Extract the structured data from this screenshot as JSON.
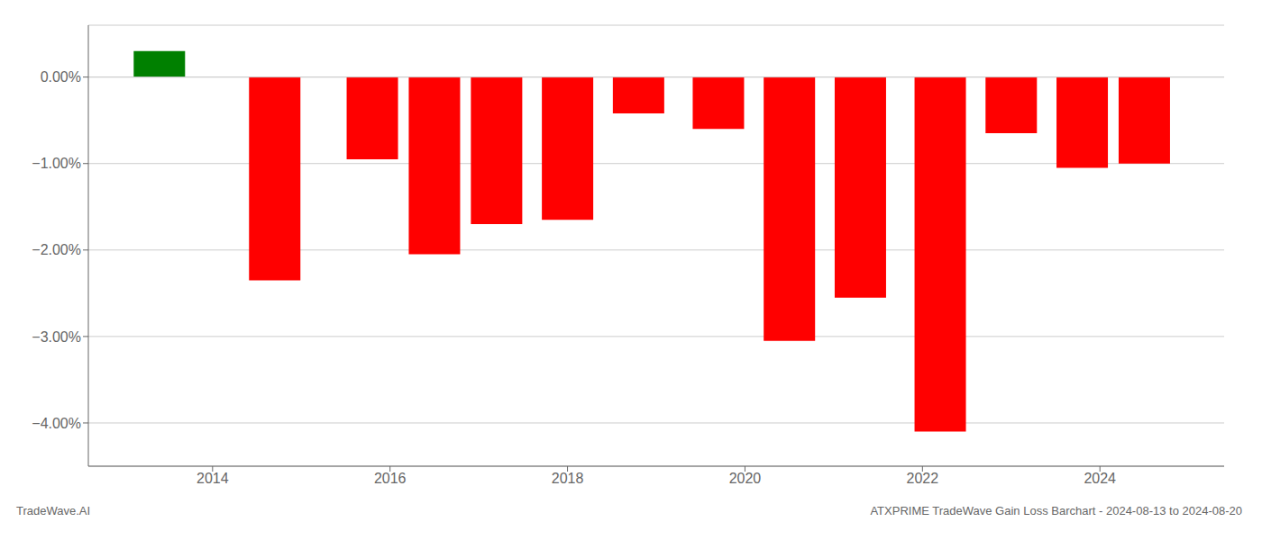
{
  "chart_data": {
    "type": "bar",
    "x": [
      2013.4,
      2014.7,
      2015.8,
      2016.5,
      2017.2,
      2018.0,
      2018.8,
      2019.7,
      2020.5,
      2021.3,
      2022.2,
      2023.0,
      2023.8,
      2024.5
    ],
    "values": [
      0.3,
      -2.35,
      -0.95,
      -2.05,
      -1.7,
      -1.65,
      -0.42,
      -0.6,
      -3.05,
      -2.55,
      -4.1,
      -0.65,
      -1.05,
      -1.0
    ],
    "colors": [
      "#008000",
      "#ff0000",
      "#ff0000",
      "#ff0000",
      "#ff0000",
      "#ff0000",
      "#ff0000",
      "#ff0000",
      "#ff0000",
      "#ff0000",
      "#ff0000",
      "#ff0000",
      "#ff0000",
      "#ff0000"
    ],
    "xlim": [
      2012.6,
      2025.4
    ],
    "xticks": [
      2014,
      2016,
      2018,
      2020,
      2022,
      2024
    ],
    "ylim": [
      -4.5,
      0.6
    ],
    "yticks": [
      {
        "value": 0.0,
        "label": "0.00%"
      },
      {
        "value": -1.0,
        "label": "−1.00%"
      },
      {
        "value": -2.0,
        "label": "−2.00%"
      },
      {
        "value": -3.0,
        "label": "−3.00%"
      },
      {
        "value": -4.0,
        "label": "−4.00%"
      }
    ],
    "grid": true,
    "annotations": [
      "TradeWave.AI",
      "ATXPRIME TradeWave Gain Loss Barchart - 2024-08-13 to 2024-08-20"
    ]
  }
}
